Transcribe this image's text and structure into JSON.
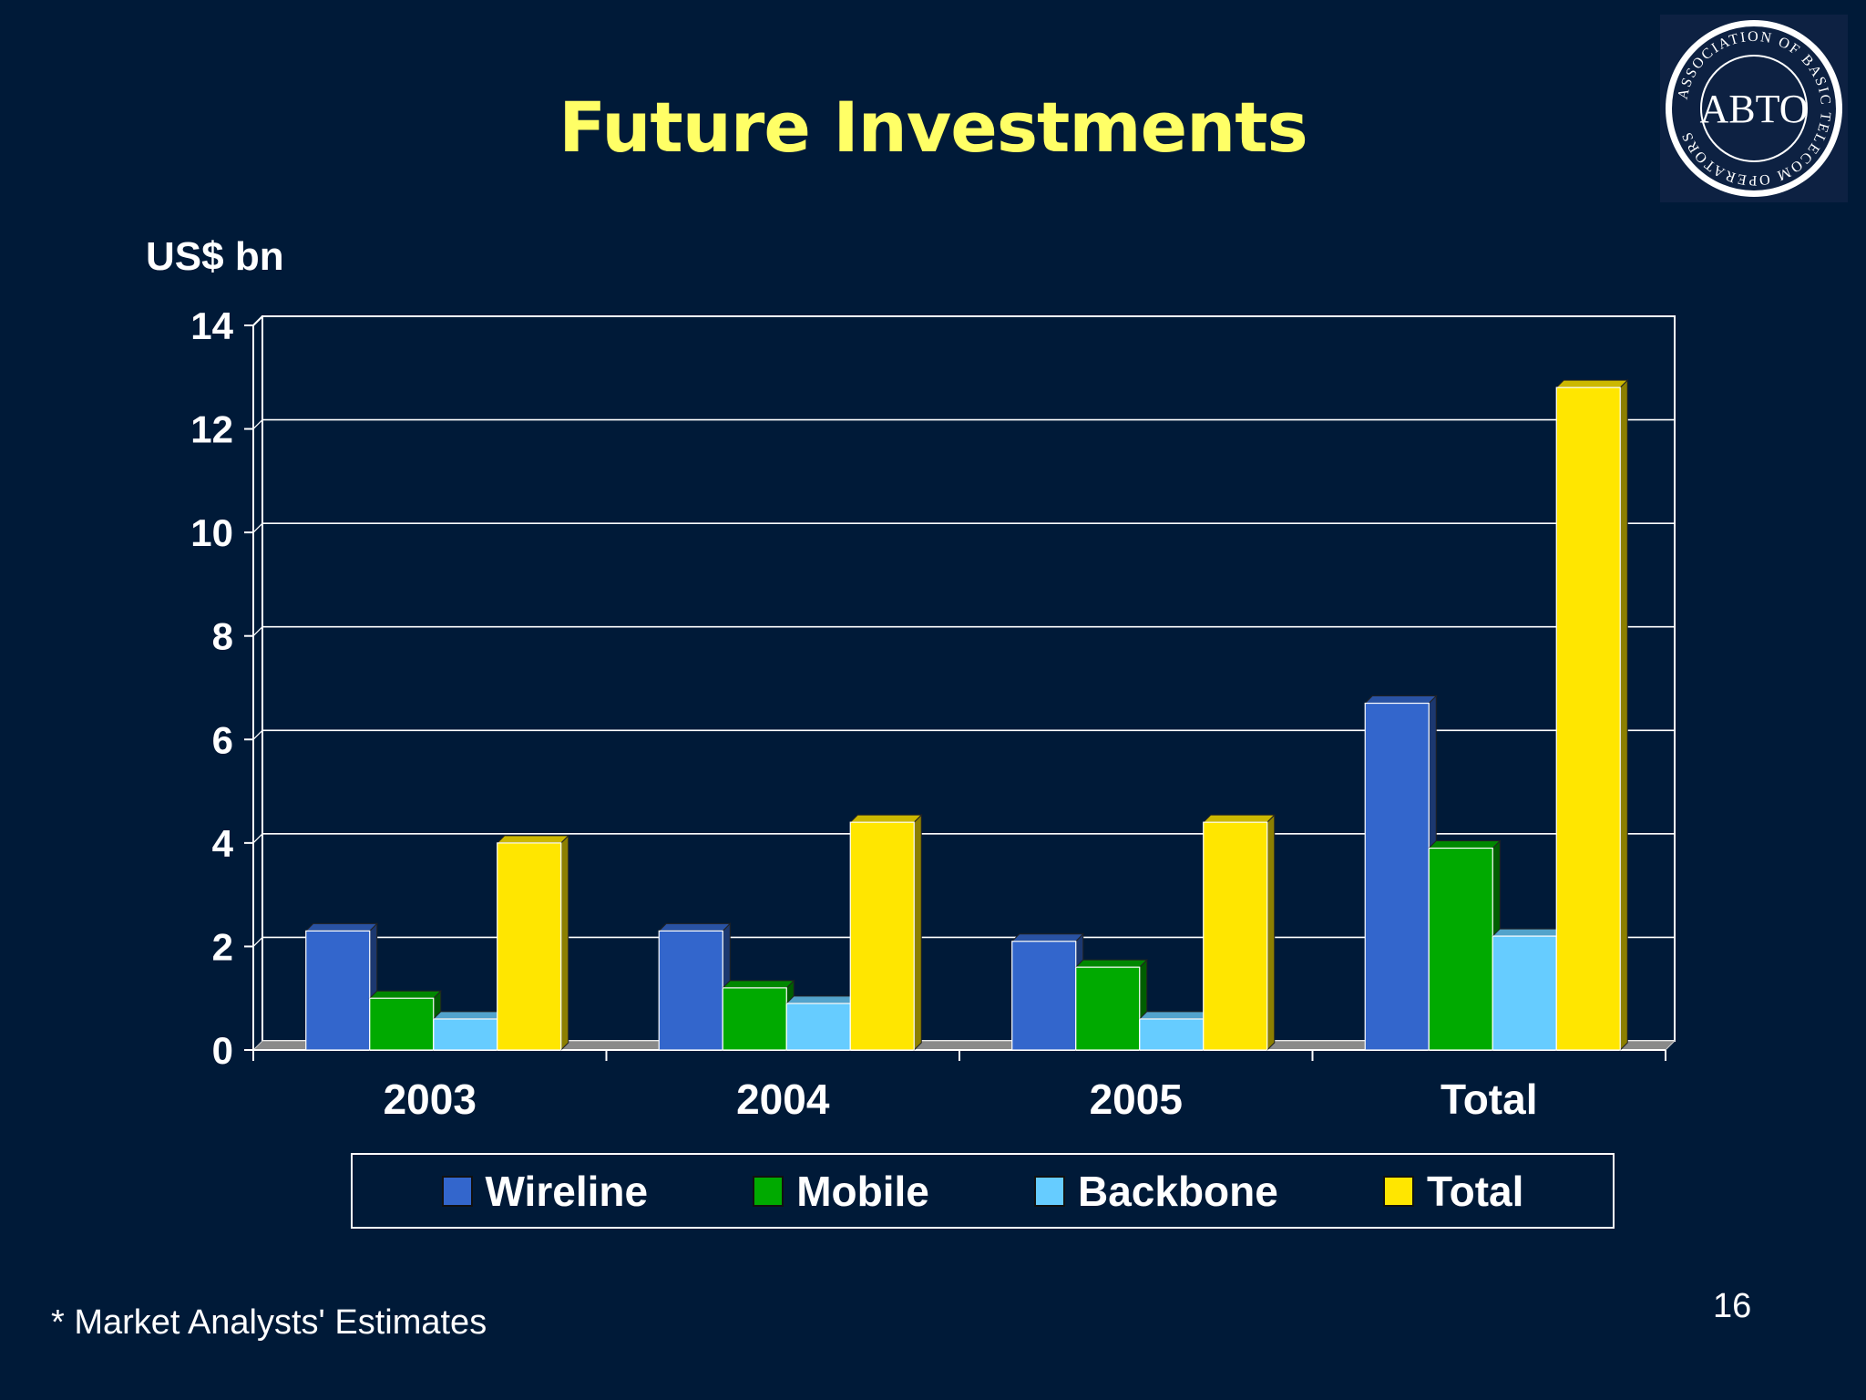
{
  "slide": {
    "title": "Future Investments",
    "footnote": "* Market Analysts' Estimates",
    "page_number": "16",
    "logo": {
      "center_text": "ABTO",
      "ring_text": "ASSOCIATION OF BASIC TELECOM OPERATORS"
    }
  },
  "colors": {
    "background": "#001a38",
    "title": "#ffff66",
    "wireline": "#3366cc",
    "mobile": "#00aa00",
    "backbone": "#66ccff",
    "total": "#ffe600"
  },
  "chart_data": {
    "type": "bar",
    "ylabel": "US$ bn",
    "xlabel": "",
    "ylim": [
      0,
      14
    ],
    "yticks": [
      0,
      2,
      4,
      6,
      8,
      10,
      12,
      14
    ],
    "categories": [
      "2003",
      "2004",
      "2005",
      "Total"
    ],
    "grid": true,
    "legend_position": "bottom",
    "series": [
      {
        "name": "Wireline",
        "color": "#3366cc",
        "values": [
          2.3,
          2.3,
          2.1,
          6.7
        ]
      },
      {
        "name": "Mobile",
        "color": "#00aa00",
        "values": [
          1.0,
          1.2,
          1.6,
          3.9
        ]
      },
      {
        "name": "Backbone",
        "color": "#66ccff",
        "values": [
          0.6,
          0.9,
          0.6,
          2.2
        ]
      },
      {
        "name": "Total",
        "color": "#ffe600",
        "values": [
          4.0,
          4.4,
          4.4,
          12.8
        ]
      }
    ]
  }
}
